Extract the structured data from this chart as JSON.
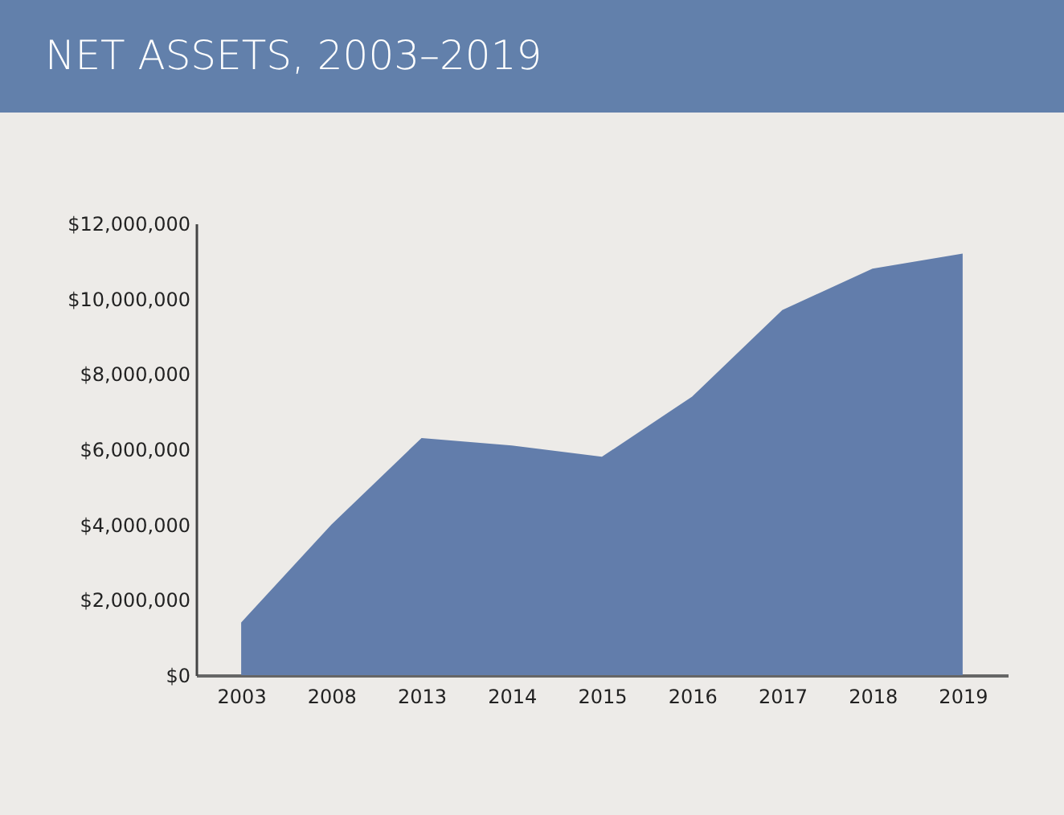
{
  "chart_data": {
    "type": "area",
    "title": "NET ASSETS, 2003–2019",
    "categories": [
      "2003",
      "2008",
      "2013",
      "2014",
      "2015",
      "2016",
      "2017",
      "2018",
      "2019"
    ],
    "values": [
      1400000,
      4000000,
      6300000,
      6100000,
      5800000,
      7400000,
      9700000,
      10800000,
      11200000
    ],
    "color": "#627dab",
    "ylim": [
      0,
      12000000
    ],
    "yticks": [
      {
        "value": 0,
        "label": "$0"
      },
      {
        "value": 2000000,
        "label": "$2,000,000"
      },
      {
        "value": 4000000,
        "label": "$4,000,000"
      },
      {
        "value": 6000000,
        "label": "$6,000,000"
      },
      {
        "value": 8000000,
        "label": "$8,000,000"
      },
      {
        "value": 10000000,
        "label": "$10,000,000"
      },
      {
        "value": 12000000,
        "label": "$12,000,000"
      }
    ],
    "grid": false
  }
}
